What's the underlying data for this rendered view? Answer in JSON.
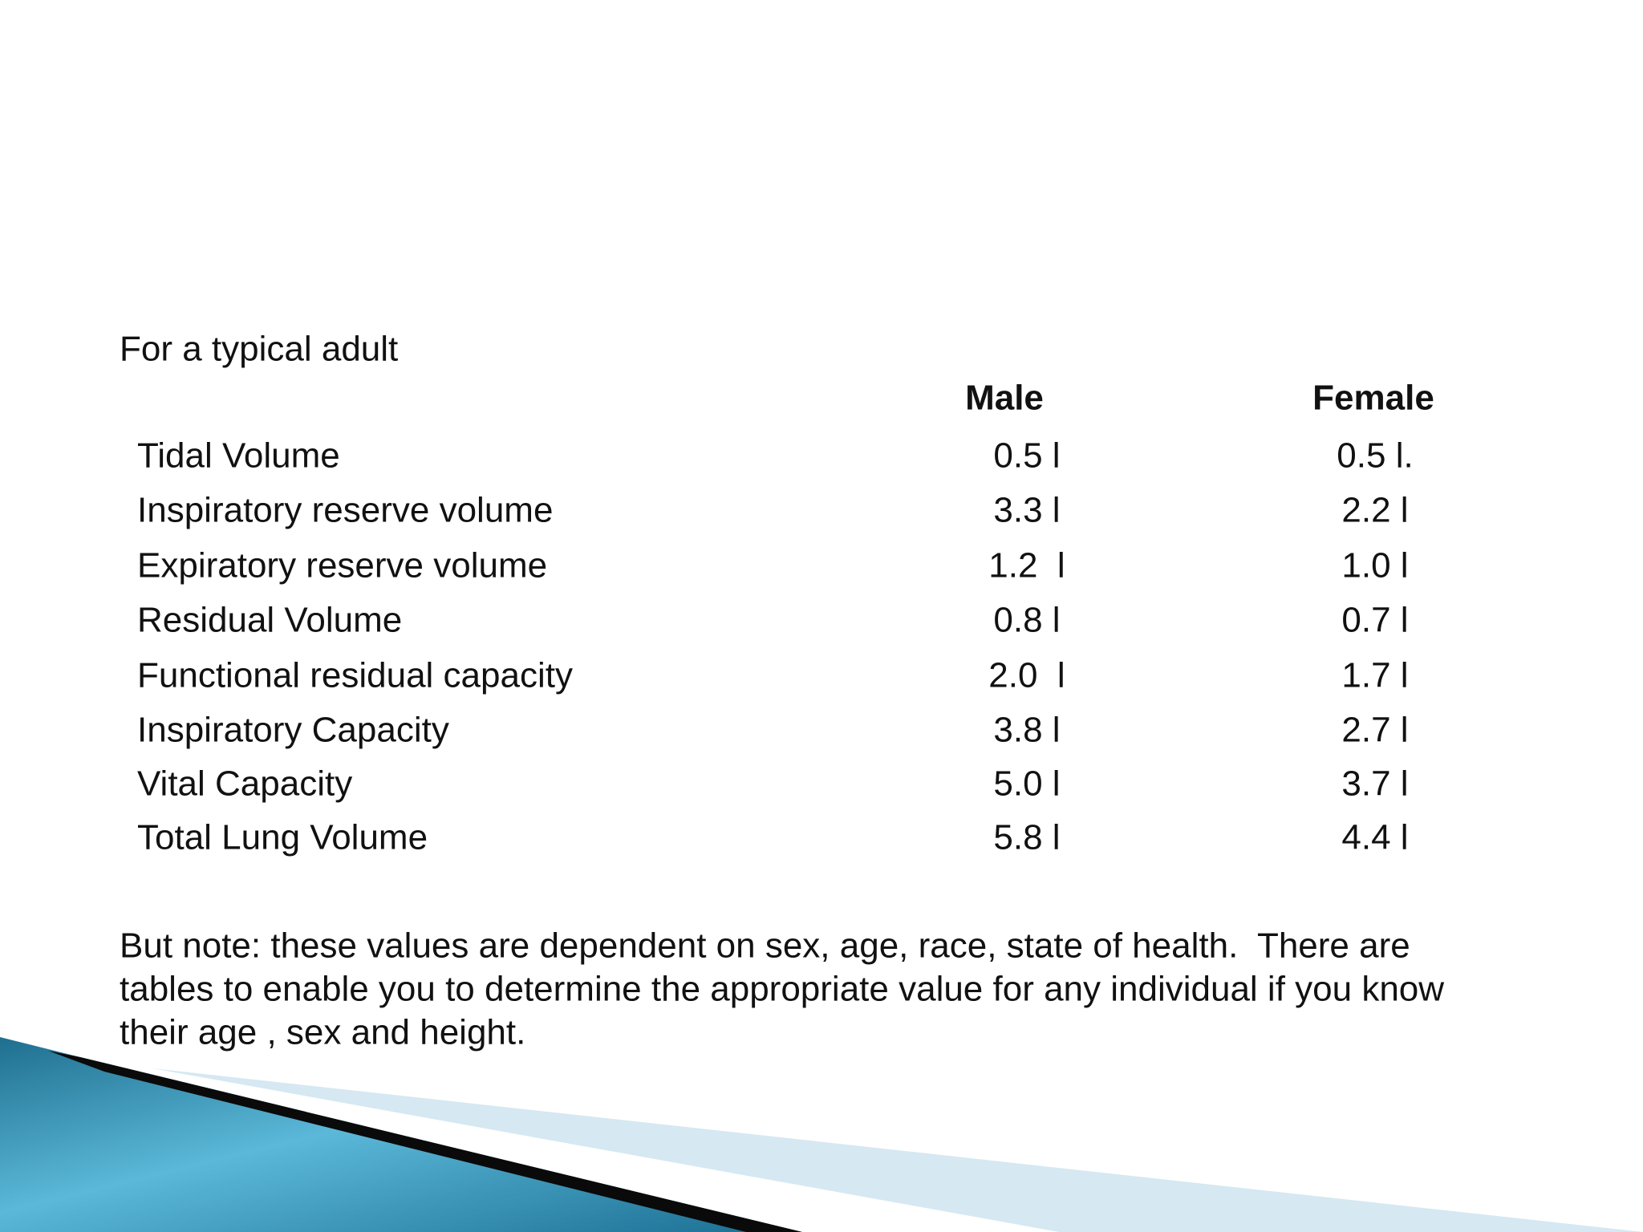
{
  "intro": "For a typical adult",
  "table": {
    "header": [
      "Male",
      "Female"
    ],
    "rows": [
      [
        "Tidal Volume",
        "0.5 l",
        "0.5 l."
      ],
      [
        "Inspiratory reserve volume",
        "3.3 l",
        "2.2 l"
      ],
      [
        "Expiratory reserve volume",
        "1.2  l",
        "1.0 l"
      ],
      [
        "Residual Volume",
        "0.8 l",
        "0.7 l"
      ],
      [
        "Functional residual capacity",
        "2.0  l",
        "1.7 l"
      ],
      [
        "Inspiratory Capacity",
        "3.8 l",
        "2.7 l"
      ],
      [
        "Vital Capacity",
        "5.0 l",
        "3.7 l"
      ],
      [
        "Total Lung Volume",
        "5.8 l",
        "4.4 l"
      ]
    ]
  },
  "note": {
    "lines": [
      "But note: these values are dependent on sex, age, race, state of health.  There are",
      "tables to enable you to determine the appropriate value for any individual if you know",
      "their age , sex and height."
    ]
  }
}
